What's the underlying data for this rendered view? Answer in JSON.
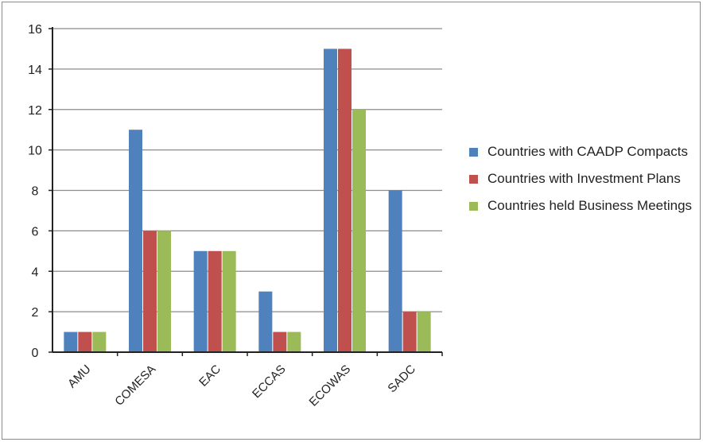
{
  "chart_data": {
    "type": "bar",
    "categories": [
      "AMU",
      "COMESA",
      "EAC",
      "ECCAS",
      "ECOWAS",
      "SADC"
    ],
    "series": [
      {
        "name": "Countries with CAADP Compacts",
        "color": "#4f81bd",
        "values": [
          1,
          11,
          5,
          3,
          15,
          8
        ]
      },
      {
        "name": "Countries with Investment Plans",
        "color": "#c0504d",
        "values": [
          1,
          6,
          5,
          1,
          15,
          2
        ]
      },
      {
        "name": "Countries held Business Meetings",
        "color": "#9bbb59",
        "values": [
          1,
          6,
          5,
          1,
          12,
          2
        ]
      }
    ],
    "yticks": [
      "0",
      "2",
      "4",
      "6",
      "8",
      "10",
      "12",
      "14",
      "16"
    ],
    "ylim": [
      0,
      16
    ],
    "grid": true,
    "legend_position": "right",
    "title": "",
    "xlabel": "",
    "ylabel": ""
  }
}
